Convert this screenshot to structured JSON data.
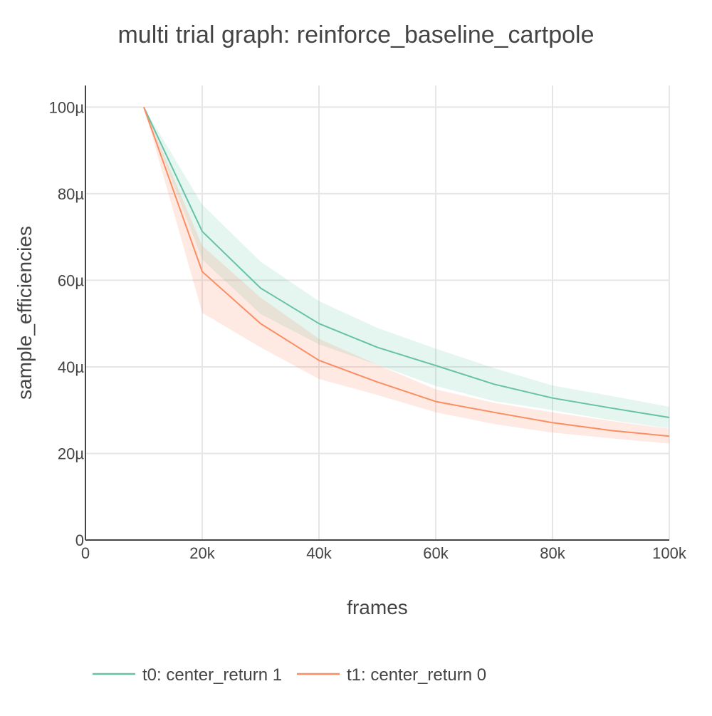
{
  "chart_data": {
    "type": "line",
    "title": "multi trial graph: reinforce_baseline_cartpole",
    "xlabel": "frames",
    "ylabel": "sample_efficiencies",
    "xlim": [
      0,
      100000
    ],
    "ylim": [
      0,
      0.000105
    ],
    "x_ticks": [
      {
        "value": 0,
        "label": "0"
      },
      {
        "value": 20000,
        "label": "20k"
      },
      {
        "value": 40000,
        "label": "40k"
      },
      {
        "value": 60000,
        "label": "60k"
      },
      {
        "value": 80000,
        "label": "80k"
      },
      {
        "value": 100000,
        "label": "100k"
      }
    ],
    "y_ticks": [
      {
        "value": 0,
        "label": "0"
      },
      {
        "value": 2e-05,
        "label": "20µ"
      },
      {
        "value": 4e-05,
        "label": "40µ"
      },
      {
        "value": 6e-05,
        "label": "60µ"
      },
      {
        "value": 8e-05,
        "label": "80µ"
      },
      {
        "value": 0.0001,
        "label": "100µ"
      }
    ],
    "grid": true,
    "legend_position": "bottom",
    "x": [
      10000,
      20000,
      30000,
      40000,
      50000,
      60000,
      70000,
      80000,
      90000,
      100000
    ],
    "series": [
      {
        "name": "t0: center_return 1",
        "color": "#66c2a5",
        "band_color": "rgba(102,194,165,0.17)",
        "values": [
          0.0001,
          7.13e-05,
          5.82e-05,
          5e-05,
          4.45e-05,
          4.03e-05,
          3.6e-05,
          3.28e-05,
          3.05e-05,
          2.83e-05
        ],
        "upper": [
          0.0001,
          7.75e-05,
          6.43e-05,
          5.52e-05,
          4.9e-05,
          4.42e-05,
          3.97e-05,
          3.57e-05,
          3.33e-05,
          3.08e-05
        ],
        "lower": [
          0.0001,
          6.48e-05,
          5.22e-05,
          4.52e-05,
          4.05e-05,
          3.56e-05,
          3.21e-05,
          3e-05,
          2.77e-05,
          2.58e-05
        ]
      },
      {
        "name": "t1: center_return 0",
        "color": "#fc8d62",
        "band_color": "rgba(252,141,98,0.18)",
        "values": [
          0.0001,
          6.2e-05,
          5e-05,
          4.15e-05,
          3.65e-05,
          3.2e-05,
          2.95e-05,
          2.71e-05,
          2.53e-05,
          2.4e-05
        ],
        "upper": [
          0.0001,
          6.8e-05,
          5.6e-05,
          4.65e-05,
          4.05e-05,
          3.48e-05,
          3.17e-05,
          2.95e-05,
          2.75e-05,
          2.57e-05
        ],
        "lower": [
          0.0001,
          5.25e-05,
          4.45e-05,
          3.72e-05,
          3.35e-05,
          2.95e-05,
          2.68e-05,
          2.48e-05,
          2.35e-05,
          2.23e-05
        ]
      }
    ]
  }
}
